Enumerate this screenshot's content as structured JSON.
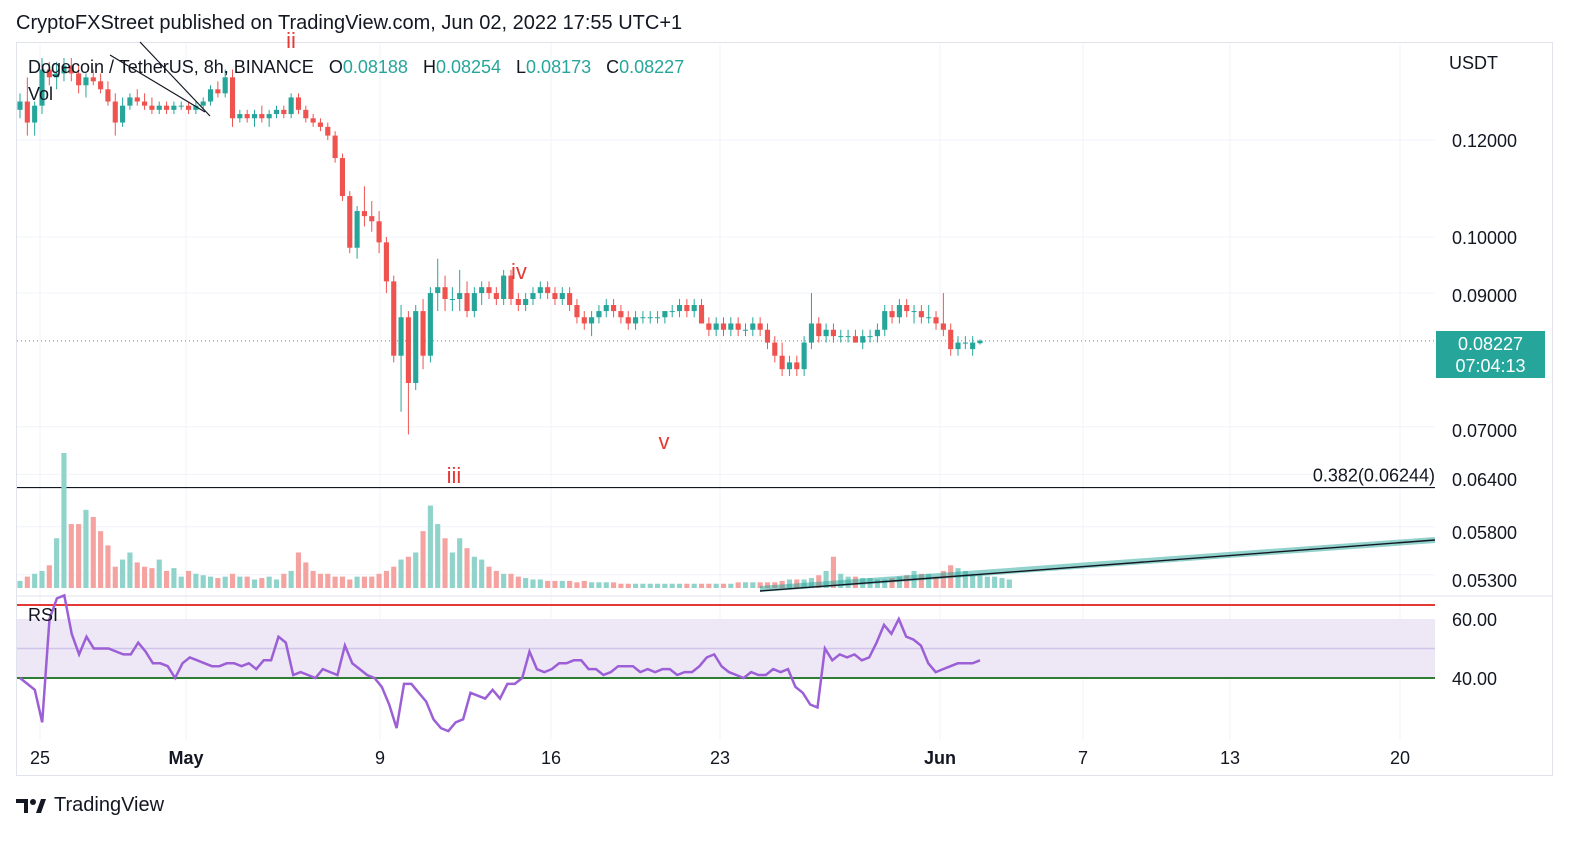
{
  "header": {
    "text": "CryptoFXStreet published on TradingView.com, Jun 02, 2022 17:55 UTC+1"
  },
  "legend": {
    "symbol": "Dogecoin / TetherUS, 8h, BINANCE",
    "o_label": "O",
    "o_value": "0.08188",
    "h_label": "H",
    "h_value": "0.08254",
    "l_label": "L",
    "l_value": "0.08173",
    "c_label": "C",
    "c_value": "0.08227",
    "vol_label": "Vol",
    "rsi_label": "RSI"
  },
  "axis": {
    "unit": "USDT"
  },
  "price_tag": {
    "price": "0.08227",
    "countdown": "07:04:13"
  },
  "footer": {
    "brand": "TradingView"
  },
  "colors": {
    "up": "#26a69a",
    "down": "#ef5350",
    "rsi": "#9c5fd6",
    "rsi_band": "#ede7f6",
    "rsi_upper": "#e53935",
    "rsi_lower": "#2e7d32",
    "wave": "#e53935"
  },
  "chart_data": [
    {
      "type": "candlestick",
      "title": "Dogecoin / TetherUS, 8h, BINANCE",
      "y_tick_labels": [
        "0.12000",
        "0.10000",
        "0.09000",
        "0.07000",
        "0.06400",
        "0.05800",
        "0.05300"
      ],
      "y_ticks": [
        0.12,
        0.1,
        0.09,
        0.07,
        0.064,
        0.058,
        0.053
      ],
      "y_scale": "log",
      "x_tick_labels": [
        "25",
        "May",
        "9",
        "16",
        "23",
        "Jun",
        "7",
        "13",
        "20"
      ],
      "last_price": 0.08227,
      "candles": [
        [
          0.127,
          0.131,
          0.125,
          0.129
        ],
        [
          0.129,
          0.135,
          0.121,
          0.124
        ],
        [
          0.124,
          0.129,
          0.121,
          0.128
        ],
        [
          0.128,
          0.14,
          0.126,
          0.137
        ],
        [
          0.137,
          0.139,
          0.133,
          0.135
        ],
        [
          0.135,
          0.139,
          0.132,
          0.136
        ],
        [
          0.136,
          0.14,
          0.134,
          0.138
        ],
        [
          0.138,
          0.14,
          0.134,
          0.136
        ],
        [
          0.136,
          0.138,
          0.131,
          0.133
        ],
        [
          0.133,
          0.136,
          0.13,
          0.135
        ],
        [
          0.135,
          0.137,
          0.133,
          0.134
        ],
        [
          0.134,
          0.136,
          0.131,
          0.132
        ],
        [
          0.132,
          0.134,
          0.128,
          0.129
        ],
        [
          0.129,
          0.131,
          0.121,
          0.124
        ],
        [
          0.124,
          0.13,
          0.123,
          0.128
        ],
        [
          0.128,
          0.131,
          0.127,
          0.13
        ],
        [
          0.13,
          0.132,
          0.128,
          0.129
        ],
        [
          0.129,
          0.131,
          0.127,
          0.128
        ],
        [
          0.128,
          0.13,
          0.126,
          0.127
        ],
        [
          0.127,
          0.129,
          0.126,
          0.128
        ],
        [
          0.128,
          0.129,
          0.126,
          0.127
        ],
        [
          0.127,
          0.129,
          0.126,
          0.128
        ],
        [
          0.128,
          0.129,
          0.127,
          0.128
        ],
        [
          0.128,
          0.129,
          0.126,
          0.127
        ],
        [
          0.127,
          0.129,
          0.126,
          0.128
        ],
        [
          0.128,
          0.13,
          0.127,
          0.129
        ],
        [
          0.129,
          0.133,
          0.128,
          0.132
        ],
        [
          0.132,
          0.134,
          0.13,
          0.131
        ],
        [
          0.131,
          0.137,
          0.13,
          0.135
        ],
        [
          0.135,
          0.137,
          0.123,
          0.125
        ],
        [
          0.125,
          0.127,
          0.124,
          0.126
        ],
        [
          0.126,
          0.127,
          0.124,
          0.125
        ],
        [
          0.125,
          0.127,
          0.123,
          0.126
        ],
        [
          0.126,
          0.128,
          0.124,
          0.125
        ],
        [
          0.125,
          0.127,
          0.123,
          0.126
        ],
        [
          0.126,
          0.128,
          0.125,
          0.127
        ],
        [
          0.127,
          0.128,
          0.125,
          0.126
        ],
        [
          0.126,
          0.131,
          0.125,
          0.13
        ],
        [
          0.13,
          0.131,
          0.126,
          0.127
        ],
        [
          0.127,
          0.128,
          0.124,
          0.125
        ],
        [
          0.125,
          0.126,
          0.123,
          0.124
        ],
        [
          0.124,
          0.125,
          0.122,
          0.123
        ],
        [
          0.123,
          0.124,
          0.12,
          0.121
        ],
        [
          0.121,
          0.122,
          0.115,
          0.116
        ],
        [
          0.116,
          0.117,
          0.107,
          0.108
        ],
        [
          0.108,
          0.109,
          0.097,
          0.098
        ],
        [
          0.098,
          0.106,
          0.096,
          0.105
        ],
        [
          0.105,
          0.11,
          0.102,
          0.104
        ],
        [
          0.104,
          0.107,
          0.101,
          0.103
        ],
        [
          0.103,
          0.105,
          0.097,
          0.099
        ],
        [
          0.099,
          0.1,
          0.09,
          0.092
        ],
        [
          0.092,
          0.093,
          0.079,
          0.08
        ],
        [
          0.08,
          0.088,
          0.072,
          0.086
        ],
        [
          0.086,
          0.087,
          0.069,
          0.076
        ],
        [
          0.076,
          0.088,
          0.075,
          0.087
        ],
        [
          0.087,
          0.089,
          0.078,
          0.08
        ],
        [
          0.08,
          0.091,
          0.079,
          0.09
        ],
        [
          0.09,
          0.096,
          0.087,
          0.091
        ],
        [
          0.091,
          0.093,
          0.087,
          0.089
        ],
        [
          0.089,
          0.091,
          0.087,
          0.089
        ],
        [
          0.089,
          0.094,
          0.087,
          0.09
        ],
        [
          0.09,
          0.092,
          0.086,
          0.087
        ],
        [
          0.087,
          0.091,
          0.086,
          0.09
        ],
        [
          0.09,
          0.092,
          0.088,
          0.091
        ],
        [
          0.091,
          0.092,
          0.089,
          0.09
        ],
        [
          0.09,
          0.091,
          0.088,
          0.089
        ],
        [
          0.089,
          0.094,
          0.088,
          0.093
        ],
        [
          0.093,
          0.094,
          0.088,
          0.089
        ],
        [
          0.089,
          0.09,
          0.087,
          0.088
        ],
        [
          0.088,
          0.09,
          0.087,
          0.089
        ],
        [
          0.089,
          0.091,
          0.088,
          0.09
        ],
        [
          0.09,
          0.092,
          0.089,
          0.091
        ],
        [
          0.091,
          0.092,
          0.089,
          0.09
        ],
        [
          0.09,
          0.091,
          0.088,
          0.089
        ],
        [
          0.089,
          0.091,
          0.088,
          0.09
        ],
        [
          0.09,
          0.091,
          0.087,
          0.088
        ],
        [
          0.088,
          0.089,
          0.085,
          0.086
        ],
        [
          0.086,
          0.087,
          0.084,
          0.085
        ],
        [
          0.085,
          0.087,
          0.083,
          0.086
        ],
        [
          0.086,
          0.088,
          0.085,
          0.087
        ],
        [
          0.087,
          0.089,
          0.086,
          0.088
        ],
        [
          0.088,
          0.089,
          0.086,
          0.087
        ],
        [
          0.087,
          0.088,
          0.085,
          0.086
        ],
        [
          0.086,
          0.087,
          0.084,
          0.085
        ],
        [
          0.085,
          0.087,
          0.084,
          0.086
        ],
        [
          0.086,
          0.087,
          0.085,
          0.086
        ],
        [
          0.086,
          0.087,
          0.085,
          0.086
        ],
        [
          0.086,
          0.087,
          0.085,
          0.086
        ],
        [
          0.086,
          0.087,
          0.085,
          0.087
        ],
        [
          0.087,
          0.088,
          0.086,
          0.087
        ],
        [
          0.087,
          0.089,
          0.086,
          0.088
        ],
        [
          0.088,
          0.089,
          0.086,
          0.087
        ],
        [
          0.087,
          0.089,
          0.086,
          0.088
        ],
        [
          0.088,
          0.089,
          0.085,
          0.085
        ],
        [
          0.085,
          0.086,
          0.083,
          0.084
        ],
        [
          0.084,
          0.086,
          0.083,
          0.085
        ],
        [
          0.085,
          0.086,
          0.083,
          0.084
        ],
        [
          0.084,
          0.086,
          0.083,
          0.085
        ],
        [
          0.085,
          0.086,
          0.083,
          0.084
        ],
        [
          0.084,
          0.085,
          0.083,
          0.084
        ],
        [
          0.084,
          0.086,
          0.083,
          0.085
        ],
        [
          0.085,
          0.086,
          0.083,
          0.084
        ],
        [
          0.084,
          0.085,
          0.081,
          0.082
        ],
        [
          0.082,
          0.083,
          0.079,
          0.08
        ],
        [
          0.08,
          0.082,
          0.077,
          0.078
        ],
        [
          0.078,
          0.08,
          0.077,
          0.079
        ],
        [
          0.079,
          0.08,
          0.077,
          0.078
        ],
        [
          0.078,
          0.083,
          0.077,
          0.082
        ],
        [
          0.082,
          0.09,
          0.081,
          0.085
        ],
        [
          0.085,
          0.086,
          0.082,
          0.083
        ],
        [
          0.083,
          0.085,
          0.082,
          0.084
        ],
        [
          0.084,
          0.085,
          0.082,
          0.083
        ],
        [
          0.083,
          0.084,
          0.082,
          0.083
        ],
        [
          0.083,
          0.084,
          0.082,
          0.083
        ],
        [
          0.083,
          0.084,
          0.082,
          0.082
        ],
        [
          0.082,
          0.084,
          0.081,
          0.083
        ],
        [
          0.083,
          0.084,
          0.082,
          0.083
        ],
        [
          0.083,
          0.085,
          0.082,
          0.084
        ],
        [
          0.084,
          0.088,
          0.083,
          0.087
        ],
        [
          0.087,
          0.088,
          0.085,
          0.086
        ],
        [
          0.086,
          0.089,
          0.085,
          0.088
        ],
        [
          0.088,
          0.089,
          0.086,
          0.087
        ],
        [
          0.087,
          0.088,
          0.085,
          0.087
        ],
        [
          0.087,
          0.088,
          0.085,
          0.086
        ],
        [
          0.086,
          0.088,
          0.085,
          0.086
        ],
        [
          0.086,
          0.087,
          0.084,
          0.085
        ],
        [
          0.085,
          0.09,
          0.083,
          0.084
        ],
        [
          0.084,
          0.085,
          0.08,
          0.081
        ],
        [
          0.081,
          0.083,
          0.08,
          0.082
        ],
        [
          0.082,
          0.083,
          0.081,
          0.082
        ],
        [
          0.081,
          0.083,
          0.08,
          0.082
        ],
        [
          0.0819,
          0.0825,
          0.0817,
          0.0823
        ]
      ],
      "volume": [
        5,
        8,
        10,
        12,
        16,
        35,
        95,
        45,
        45,
        55,
        50,
        40,
        30,
        15,
        20,
        25,
        18,
        15,
        14,
        20,
        12,
        14,
        8,
        12,
        10,
        9,
        8,
        7,
        8,
        10,
        8,
        8,
        6,
        7,
        8,
        6,
        10,
        12,
        25,
        18,
        12,
        10,
        10,
        8,
        8,
        6,
        8,
        8,
        8,
        10,
        12,
        15,
        20,
        22,
        25,
        40,
        58,
        45,
        35,
        25,
        35,
        28,
        22,
        20,
        15,
        12,
        10,
        10,
        8,
        7,
        6,
        6,
        5,
        5,
        5,
        5,
        4,
        5,
        4,
        4,
        4,
        4,
        3,
        3,
        3,
        3,
        3,
        3,
        3,
        3,
        3,
        3,
        3,
        3,
        3,
        3,
        3,
        3,
        4,
        4,
        4,
        4,
        4,
        4,
        5,
        6,
        6,
        6,
        7,
        9,
        12,
        22,
        10,
        8,
        8,
        7,
        7,
        6,
        6,
        7,
        8,
        9,
        12,
        10,
        10,
        8,
        12,
        16,
        14,
        12,
        10,
        9,
        8,
        8,
        7,
        6
      ],
      "levels": [
        {
          "label": "0.382(0.06244)",
          "value": 0.06244
        }
      ],
      "wave_labels": [
        "ii",
        "iii",
        "iv",
        "v"
      ]
    },
    {
      "type": "line",
      "title": "RSI",
      "y_tick_labels": [
        "60.00",
        "40.00"
      ],
      "upper_band": 60,
      "lower_band": 40,
      "mid": 50,
      "values": [
        40,
        38,
        36,
        25,
        60,
        67,
        68,
        55,
        48,
        54,
        50,
        50,
        50,
        49,
        48,
        48,
        52,
        49,
        45,
        45,
        44,
        40,
        45,
        47,
        46,
        45,
        44,
        44,
        45,
        45,
        44,
        45,
        43,
        46,
        46,
        54,
        52,
        41,
        42,
        41,
        40,
        43,
        42,
        41,
        51,
        45,
        43,
        41,
        40,
        37,
        31,
        23,
        38,
        38,
        35,
        32,
        26,
        23,
        22,
        25,
        26,
        35,
        34,
        33,
        36,
        33,
        38,
        38,
        40,
        49,
        43,
        42,
        43,
        45,
        45,
        46,
        46,
        43,
        43,
        41,
        42,
        44,
        44,
        44,
        42,
        43,
        42,
        43,
        43,
        41,
        42,
        42,
        44,
        47,
        48,
        44,
        42,
        41,
        40,
        42,
        41,
        41,
        43,
        42,
        43,
        37,
        35,
        31,
        30,
        50,
        46,
        48,
        47,
        48,
        46,
        47,
        52,
        58,
        55,
        60,
        54,
        53,
        51,
        45,
        42,
        43,
        44,
        45,
        45,
        45,
        46
      ]
    }
  ]
}
